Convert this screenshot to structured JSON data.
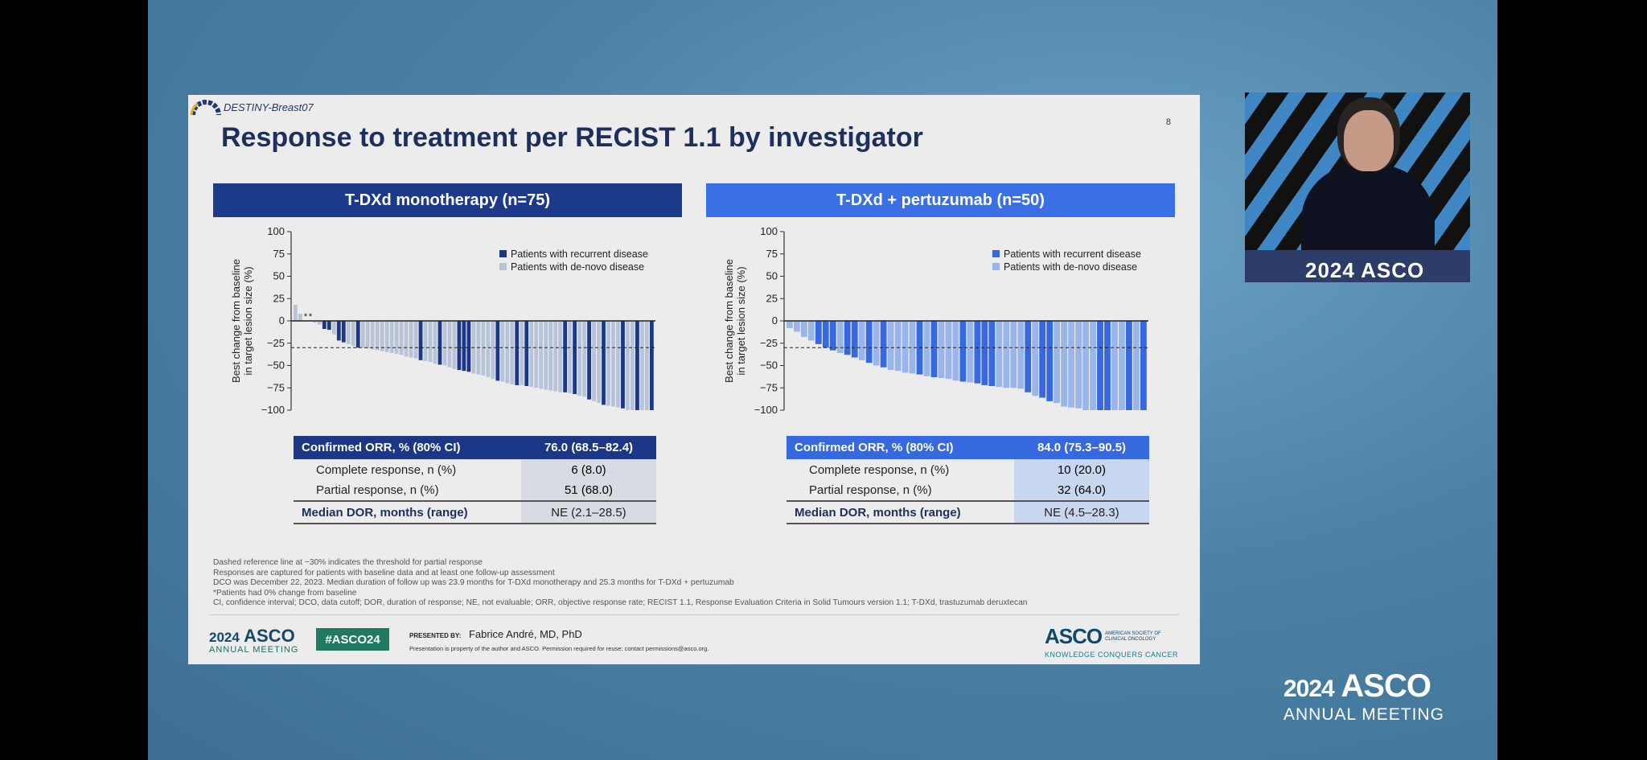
{
  "slide": {
    "trial_name": "DESTINY-Breast07",
    "page_number": "8",
    "title": "Response to treatment per RECIST 1.1 by investigator"
  },
  "panels": [
    {
      "header": "T-DXd monotherapy (n=75)",
      "header_color": "#1b3a8c",
      "recurrent_color": "#1b3786",
      "denovo_color": "#b8c3d8",
      "table": {
        "orr_label": "Confirmed ORR, % (80% CI)",
        "orr_value": "76.0 (68.5–82.4)",
        "cr_label": "Complete response, n (%)",
        "cr_value": "6 (8.0)",
        "pr_label": "Partial response, n (%)",
        "pr_value": "51 (68.0)",
        "dor_label": "Median DOR, months (range)",
        "dor_value": "NE (2.1–28.5)"
      }
    },
    {
      "header": "T-DXd + pertuzumab (n=50)",
      "header_color": "#3b6fe6",
      "recurrent_color": "#3668e0",
      "denovo_color": "#9ab5ea",
      "table": {
        "orr_label": "Confirmed ORR, % (80% CI)",
        "orr_value": "84.0 (75.3–90.5)",
        "cr_label": "Complete response, n (%)",
        "cr_value": "10 (20.0)",
        "pr_label": "Partial response, n (%)",
        "pr_value": "32 (64.0)",
        "dor_label": "Median DOR, months (range)",
        "dor_value": "NE (4.5–28.3)"
      }
    }
  ],
  "chart_data": [
    {
      "type": "bar",
      "subtype": "waterfall",
      "ylabel": "Best change from baseline in target lesion size (%)",
      "ylim": [
        -100,
        100
      ],
      "yticks": [
        100,
        75,
        50,
        25,
        0,
        -25,
        -50,
        -75,
        -100
      ],
      "reference_line": -30,
      "legend_position": "top-right",
      "series": [
        {
          "name": "Patients with recurrent disease",
          "key": "R"
        },
        {
          "name": "Patients with de-novo disease",
          "key": "D"
        }
      ],
      "zero_change_marker": "*",
      "values": [
        18,
        8,
        0,
        0,
        -2,
        -4,
        -9,
        -10,
        -15,
        -22,
        -24,
        -26,
        -28,
        -30,
        -30,
        -31,
        -32,
        -33,
        -34,
        -35,
        -36,
        -37,
        -38,
        -40,
        -41,
        -42,
        -44,
        -45,
        -46,
        -48,
        -49,
        -50,
        -52,
        -54,
        -55,
        -56,
        -57,
        -59,
        -60,
        -61,
        -63,
        -65,
        -67,
        -68,
        -70,
        -71,
        -72,
        -72,
        -73,
        -74,
        -75,
        -76,
        -77,
        -78,
        -79,
        -80,
        -80,
        -81,
        -82,
        -84,
        -85,
        -88,
        -90,
        -92,
        -94,
        -95,
        -96,
        -97,
        -98,
        -100,
        -100,
        -100,
        -100,
        -100,
        -100
      ],
      "groups": [
        "D",
        "D",
        "D",
        "D",
        "D",
        "D",
        "R",
        "R",
        "D",
        "R",
        "R",
        "D",
        "D",
        "R",
        "D",
        "D",
        "D",
        "D",
        "D",
        "D",
        "D",
        "D",
        "D",
        "D",
        "D",
        "D",
        "R",
        "D",
        "D",
        "D",
        "R",
        "D",
        "D",
        "D",
        "R",
        "R",
        "R",
        "D",
        "D",
        "D",
        "D",
        "D",
        "R",
        "D",
        "D",
        "D",
        "R",
        "D",
        "R",
        "D",
        "D",
        "D",
        "D",
        "D",
        "D",
        "D",
        "R",
        "D",
        "R",
        "D",
        "D",
        "R",
        "D",
        "D",
        "R",
        "D",
        "D",
        "D",
        "R",
        "D",
        "D",
        "R",
        "D",
        "D",
        "R"
      ]
    },
    {
      "type": "bar",
      "subtype": "waterfall",
      "ylabel": "Best change from baseline in target lesion size (%)",
      "ylim": [
        -100,
        100
      ],
      "yticks": [
        100,
        75,
        50,
        25,
        0,
        -25,
        -50,
        -75,
        -100
      ],
      "reference_line": -30,
      "legend_position": "top-right",
      "series": [
        {
          "name": "Patients with recurrent disease",
          "key": "R"
        },
        {
          "name": "Patients with de-novo disease",
          "key": "D"
        }
      ],
      "values": [
        -8,
        -12,
        -18,
        -22,
        -26,
        -30,
        -33,
        -36,
        -38,
        -41,
        -44,
        -47,
        -50,
        -52,
        -55,
        -56,
        -58,
        -59,
        -60,
        -62,
        -63,
        -64,
        -65,
        -67,
        -68,
        -69,
        -70,
        -72,
        -73,
        -74,
        -75,
        -75,
        -76,
        -80,
        -84,
        -86,
        -90,
        -92,
        -96,
        -97,
        -98,
        -100,
        -100,
        -100,
        -100,
        -100,
        -100,
        -100,
        -100,
        -100
      ],
      "groups": [
        "D",
        "D",
        "D",
        "D",
        "R",
        "R",
        "R",
        "D",
        "R",
        "R",
        "D",
        "R",
        "D",
        "R",
        "D",
        "D",
        "D",
        "D",
        "R",
        "D",
        "R",
        "D",
        "D",
        "D",
        "R",
        "D",
        "R",
        "R",
        "R",
        "D",
        "D",
        "D",
        "D",
        "R",
        "D",
        "R",
        "R",
        "D",
        "D",
        "D",
        "D",
        "D",
        "D",
        "R",
        "R",
        "D",
        "D",
        "R",
        "D",
        "R"
      ]
    }
  ],
  "footnotes": [
    "Dashed reference line at −30% indicates the threshold for partial response",
    "Responses are captured for patients with baseline data and at least one follow-up assessment",
    "DCO was December 22, 2023. Median duration of follow up was 23.9 months for T-DXd monotherapy and 25.3 months for T-DXd + pertuzumab",
    "*Patients had 0% change from baseline",
    "CI, confidence interval; DCO, data cutoff; DOR, duration of response; NE, not evaluable; ORR, objective response rate; RECIST 1.1, Response Evaluation Criteria in Solid Tumours version 1.1; T-DXd, trastuzumab deruxtecan"
  ],
  "footer": {
    "year": "2024",
    "asco": "ASCO",
    "annual_meeting": "ANNUAL MEETING",
    "hashtag": "#ASCO24",
    "presented_by_label": "PRESENTED BY:",
    "presenter": "Fabrice André, MD, PhD",
    "property_note": "Presentation is property of the author and ASCO. Permission required for reuse; contact permissions@asco.org.",
    "society_line1": "AMERICAN SOCIETY OF",
    "society_line2": "CLINICAL ONCOLOGY",
    "tagline": "KNOWLEDGE CONQUERS CANCER"
  },
  "video": {
    "podium_text": "2024 ASCO"
  },
  "corner_logo": {
    "year": "2024",
    "asco": "ASCO",
    "annual_meeting": "ANNUAL MEETING"
  }
}
